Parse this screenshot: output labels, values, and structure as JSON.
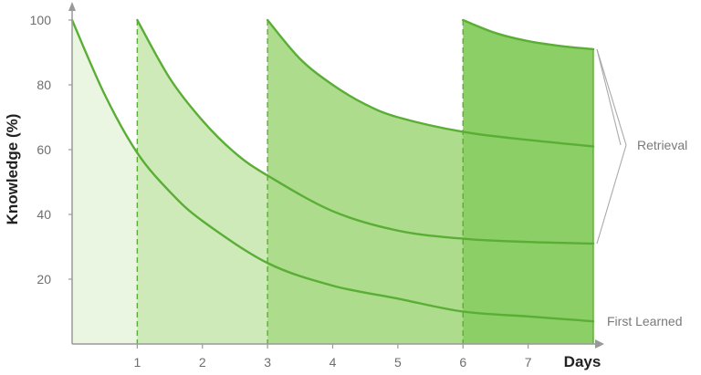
{
  "chart_data": {
    "type": "area",
    "title": "",
    "xlabel": "Days",
    "ylabel": "Knowledge (%)",
    "xlim": [
      0,
      8
    ],
    "ylim": [
      0,
      100
    ],
    "x_ticks": [
      1,
      2,
      3,
      4,
      5,
      6,
      7
    ],
    "y_ticks": [
      20,
      40,
      60,
      80,
      100
    ],
    "x_tick_labels": [
      "1",
      "2",
      "3",
      "4",
      "5",
      "6",
      "7"
    ],
    "y_tick_labels": [
      "20",
      "40",
      "60",
      "80",
      "100"
    ],
    "grid": false,
    "review_days": [
      1,
      3,
      6
    ],
    "series": [
      {
        "start": 0,
        "x": [
          0,
          0.5,
          1,
          1.5,
          2,
          3,
          4,
          5,
          6,
          7,
          8
        ],
        "values": [
          100,
          77,
          59,
          47,
          38,
          25,
          18,
          14,
          10,
          8.5,
          7
        ],
        "fill": "#eaf5e2"
      },
      {
        "start": 1,
        "x": [
          1,
          1.5,
          2,
          2.5,
          3,
          4,
          5,
          6,
          7,
          8
        ],
        "values": [
          100,
          82,
          69,
          59,
          52,
          41,
          35,
          32.5,
          31.5,
          31
        ],
        "fill": "#cdeab8"
      },
      {
        "start": 3,
        "x": [
          3,
          3.5,
          4,
          4.5,
          5,
          6,
          7,
          8
        ],
        "values": [
          100,
          88,
          80,
          74,
          70,
          65.5,
          63,
          61
        ],
        "fill": "#acdc8c"
      },
      {
        "start": 6,
        "x": [
          6,
          6.5,
          7,
          7.5,
          8
        ],
        "values": [
          100,
          96,
          93.5,
          92,
          91
        ],
        "fill": "#8ccf66"
      }
    ],
    "annotations": {
      "retrieval": "Retrieval",
      "first_learned": "First Learned"
    },
    "colors": {
      "line": "#5aae35",
      "axis": "#999999",
      "bracket": "#aaaaaa"
    }
  }
}
